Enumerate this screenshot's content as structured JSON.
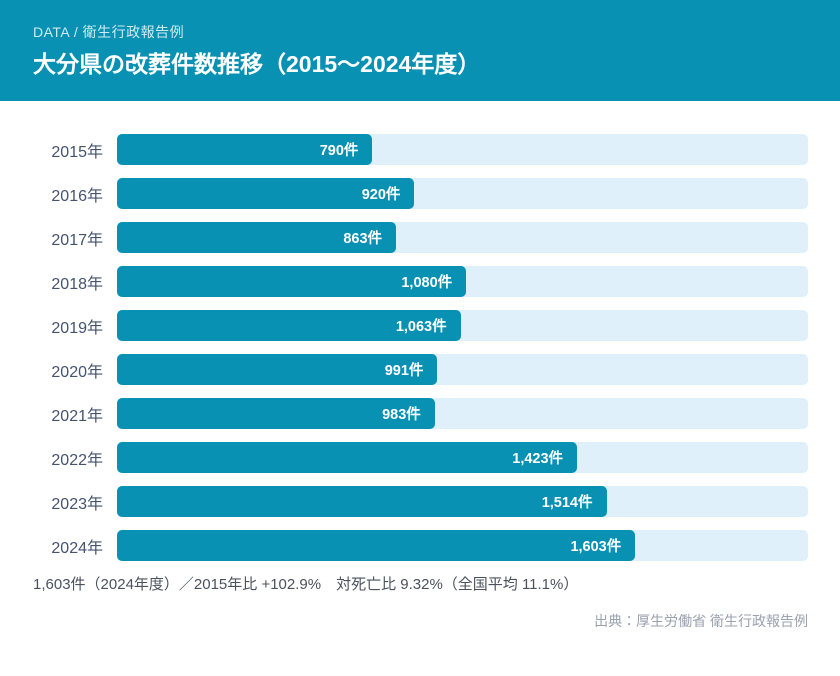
{
  "header": {
    "eyebrow": "DATA / 衛生行政報告例",
    "title": "大分県の改葬件数推移（2015～2024年度）"
  },
  "chart_data": {
    "type": "bar",
    "orientation": "horizontal",
    "title": "大分県の改葬件数推移（2015～2024年度）",
    "xlabel": "",
    "ylabel": "",
    "unit": "件",
    "categories": [
      "2015年",
      "2016年",
      "2017年",
      "2018年",
      "2019年",
      "2020年",
      "2021年",
      "2022年",
      "2023年",
      "2024年"
    ],
    "values": [
      790,
      920,
      863,
      1080,
      1063,
      991,
      983,
      1423,
      1514,
      1603
    ],
    "value_labels": [
      "790件",
      "920件",
      "863件",
      "1,080件",
      "1,063件",
      "991件",
      "983件",
      "1,423件",
      "1,514件",
      "1,603件"
    ],
    "grid": false,
    "legend": false,
    "value_labels_position": "inside-end",
    "max_bar_fraction": 0.75
  },
  "footer": {
    "summary": "1,603件（2024年度）／2015年比 +102.9%　対死亡比 9.32%（全国平均 11.1%）",
    "source": "出典：厚生労働省 衛生行政報告例"
  },
  "colors": {
    "header_bg": "#0991b4",
    "bar_fill": "#0991b4",
    "bar_track": "#dff0fb",
    "year_label_text": "#44536e",
    "bar_value_text": "#ffffff",
    "title_text": "#ffffff",
    "eyebrow_text": "#cfeaf2",
    "summary_text": "#4b525e",
    "source_text": "#9aa2af",
    "page_bg": "#ffffff"
  }
}
